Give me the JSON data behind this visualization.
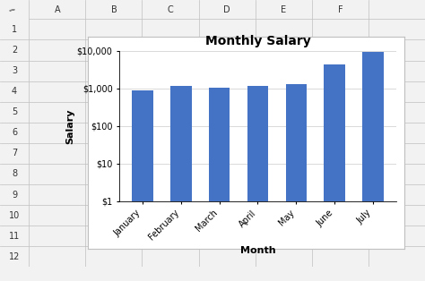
{
  "title": "Monthly Salary",
  "xlabel": "Month",
  "ylabel": "Salary",
  "categories": [
    "January",
    "February",
    "March",
    "April",
    "May",
    "June",
    "July"
  ],
  "values": [
    900,
    1200,
    1050,
    1180,
    1350,
    4500,
    9500
  ],
  "bar_color": "#4472C4",
  "ylim_min": 1,
  "ylim_max": 10000,
  "yticks": [
    1,
    10,
    100,
    1000,
    10000
  ],
  "ytick_labels": [
    "$1",
    "$10",
    "$100",
    "$1,000",
    "$10,000"
  ],
  "grid_color": "#D3D3D3",
  "excel_bg": "#F2F2F2",
  "excel_header_bg": "#E0E0E0",
  "excel_border": "#BFBFBF",
  "chart_bg": "#FFFFFF",
  "col_headers": [
    "",
    "A",
    "B",
    "C",
    "D",
    "E",
    "F",
    ""
  ],
  "row_numbers": [
    "1",
    "2",
    "3",
    "4",
    "5",
    "6",
    "7",
    "8",
    "9",
    "10",
    "11",
    "12"
  ],
  "title_fontsize": 10,
  "label_fontsize": 8,
  "tick_fontsize": 7
}
